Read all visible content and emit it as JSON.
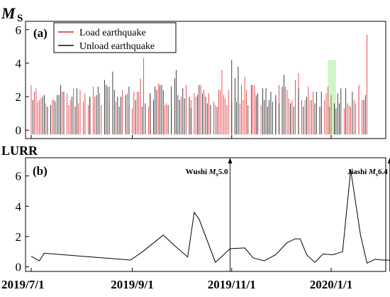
{
  "chart_data": [
    {
      "type": "bar",
      "panel_label": "(a)",
      "ylabel_main": "M",
      "ylabel_sub": "S",
      "ylim": [
        -0.5,
        6.5
      ],
      "yticks": [
        "0",
        "2",
        "4",
        "6"
      ],
      "legend": [
        {
          "name": "Load earthquake",
          "color": "#e3242b"
        },
        {
          "name": "Unload earthquake",
          "color": "#111111"
        }
      ],
      "legend_position": "top-left",
      "highlight": {
        "x_start": "2019-12-30",
        "x_end": "2020-01-04",
        "color": "#b9f2b0"
      },
      "x_start": "2019-07-01",
      "x_end": "2020-01-23",
      "series": [
        {
          "name": "Load earthquake",
          "color": "#e3242b",
          "values": []
        },
        {
          "name": "Unload earthquake",
          "color": "#111111",
          "values": []
        }
      ]
    },
    {
      "type": "line",
      "panel_label": "(b)",
      "ylabel": "LURR",
      "ylim": [
        -0.3,
        7.2
      ],
      "yticks": [
        "0",
        "2",
        "4",
        "6"
      ],
      "color": "#000000",
      "points": [
        [
          "2019-07-01",
          0.7
        ],
        [
          "2019-07-06",
          0.4
        ],
        [
          "2019-07-09",
          0.9
        ],
        [
          "2019-08-31",
          0.45
        ],
        [
          "2019-09-08",
          1.05
        ],
        [
          "2019-09-20",
          2.1
        ],
        [
          "2019-09-27",
          1.4
        ],
        [
          "2019-10-05",
          0.65
        ],
        [
          "2019-10-09",
          3.6
        ],
        [
          "2019-10-12",
          3.15
        ],
        [
          "2019-10-22",
          0.3
        ],
        [
          "2019-10-31",
          1.2
        ],
        [
          "2019-11-09",
          1.25
        ],
        [
          "2019-11-14",
          0.6
        ],
        [
          "2019-11-21",
          0.4
        ],
        [
          "2019-11-28",
          0.8
        ],
        [
          "2019-12-05",
          1.6
        ],
        [
          "2019-12-10",
          1.85
        ],
        [
          "2019-12-13",
          1.85
        ],
        [
          "2019-12-17",
          0.8
        ],
        [
          "2019-12-22",
          0.3
        ],
        [
          "2019-12-27",
          0.85
        ],
        [
          "2020-01-02",
          0.8
        ],
        [
          "2020-01-08",
          1.0
        ],
        [
          "2020-01-13",
          6.4
        ],
        [
          "2020-01-19",
          2.1
        ],
        [
          "2020-01-23",
          0.25
        ],
        [
          "2020-01-28",
          0.5
        ],
        [
          "2020-02-02",
          0.45
        ],
        [
          "2020-02-05",
          0.45
        ],
        [
          "2020-02-10",
          0.35
        ]
      ],
      "events": [
        {
          "label": "Wushi M",
          "sub": "s",
          "mag": "5.0",
          "date": "2019-10-31"
        },
        {
          "label": "Jiashi M",
          "sub": "s",
          "mag": "6.4",
          "date": "2020-02-06"
        }
      ]
    }
  ],
  "x_axis": {
    "ticks": [
      {
        "label": "2019/7/1",
        "date": "2019-07-01"
      },
      {
        "label": "2019/9/1",
        "date": "2019-09-01"
      },
      {
        "label": "2019/11/1",
        "date": "2019-11-01"
      },
      {
        "label": "2020/1/1",
        "date": "2020-01-01"
      }
    ]
  }
}
